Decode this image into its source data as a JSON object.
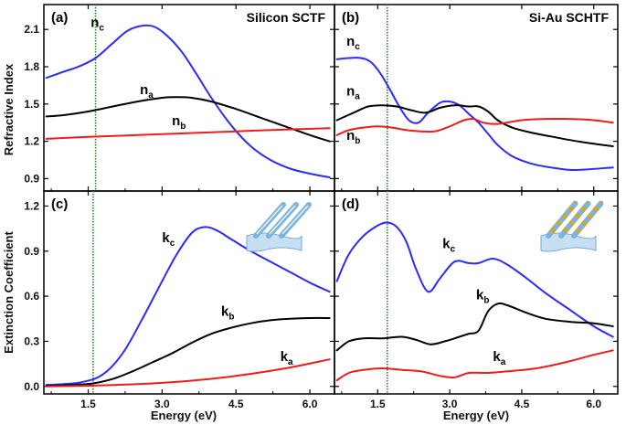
{
  "colors": {
    "n_c": "#2b2bff",
    "n_a": "#000000",
    "n_b": "#ee1c1c",
    "marker": "#2e8b2e"
  },
  "x_axis_title": "Energy (eV)",
  "chart_data": [
    {
      "id": "a",
      "type": "line",
      "tag": "(a)",
      "title": "Silicon SCTF",
      "xlabel": "Energy (eV)",
      "ylabel": "Refractive Index",
      "xlim": [
        0.6,
        6.5
      ],
      "ylim": [
        0.8,
        2.3
      ],
      "xticks": [
        "1.5",
        "3.0",
        "4.5",
        "6.0"
      ],
      "xtick_values": [
        1.5,
        3.0,
        4.5,
        6.0
      ],
      "yticks": [
        "0.9",
        "1.2",
        "1.5",
        "1.8",
        "2.1"
      ],
      "ytick_values": [
        0.9,
        1.2,
        1.5,
        1.8,
        2.1
      ],
      "marker_x": 1.65,
      "series": [
        {
          "name": "n_c",
          "label_main": "n",
          "label_sub": "c",
          "color_key": "n_c",
          "label_x": 1.55,
          "label_y": 2.12,
          "x": [
            0.65,
            1.0,
            1.3,
            1.65,
            2.0,
            2.3,
            2.6,
            2.85,
            3.1,
            3.4,
            3.7,
            4.0,
            4.4,
            4.8,
            5.2,
            5.6,
            6.0,
            6.4
          ],
          "y": [
            1.71,
            1.76,
            1.8,
            1.87,
            1.99,
            2.09,
            2.13,
            2.12,
            2.05,
            1.92,
            1.74,
            1.55,
            1.33,
            1.16,
            1.05,
            0.98,
            0.94,
            0.91
          ]
        },
        {
          "name": "n_a",
          "label_main": "n",
          "label_sub": "a",
          "color_key": "n_a",
          "label_x": 2.55,
          "label_y": 1.58,
          "x": [
            0.65,
            1.0,
            1.5,
            2.0,
            2.5,
            3.0,
            3.3,
            3.6,
            4.0,
            4.5,
            5.0,
            5.5,
            6.0,
            6.4
          ],
          "y": [
            1.4,
            1.41,
            1.44,
            1.48,
            1.52,
            1.55,
            1.555,
            1.55,
            1.52,
            1.46,
            1.39,
            1.32,
            1.25,
            1.2
          ]
        },
        {
          "name": "n_b",
          "label_main": "n",
          "label_sub": "b",
          "color_key": "n_b",
          "label_x": 3.2,
          "label_y": 1.33,
          "x": [
            0.65,
            1.5,
            2.5,
            3.5,
            4.5,
            5.5,
            6.4
          ],
          "y": [
            1.22,
            1.235,
            1.25,
            1.265,
            1.28,
            1.295,
            1.305
          ]
        }
      ]
    },
    {
      "id": "b",
      "type": "line",
      "tag": "(b)",
      "title": "Si-Au SCHTF",
      "xlabel": "Energy (eV)",
      "ylabel": "",
      "xlim": [
        0.6,
        6.5
      ],
      "ylim": [
        0.8,
        2.3
      ],
      "xticks": [
        "1.5",
        "3.0",
        "4.5",
        "6.0"
      ],
      "xtick_values": [
        1.5,
        3.0,
        4.5,
        6.0
      ],
      "yticks": [],
      "ytick_values": [],
      "marker_x": 1.7,
      "series": [
        {
          "name": "n_c",
          "label_main": "n",
          "label_sub": "c",
          "color_key": "n_c",
          "label_x": 0.85,
          "label_y": 1.97,
          "x": [
            0.65,
            0.9,
            1.15,
            1.35,
            1.55,
            1.75,
            1.95,
            2.15,
            2.35,
            2.55,
            2.8,
            3.0,
            3.2,
            3.4,
            3.6,
            3.8,
            4.0,
            4.3,
            4.7,
            5.1,
            5.5,
            5.9,
            6.4
          ],
          "y": [
            1.86,
            1.87,
            1.87,
            1.84,
            1.75,
            1.62,
            1.48,
            1.37,
            1.35,
            1.43,
            1.51,
            1.52,
            1.49,
            1.42,
            1.35,
            1.26,
            1.17,
            1.08,
            1.02,
            0.99,
            0.97,
            0.975,
            0.99
          ]
        },
        {
          "name": "n_a",
          "label_main": "n",
          "label_sub": "a",
          "color_key": "n_a",
          "label_x": 0.85,
          "label_y": 1.57,
          "x": [
            0.65,
            1.0,
            1.3,
            1.6,
            1.9,
            2.2,
            2.5,
            2.8,
            3.1,
            3.4,
            3.6,
            3.8,
            4.0,
            4.3,
            4.7,
            5.1,
            5.5,
            6.0,
            6.4
          ],
          "y": [
            1.37,
            1.43,
            1.48,
            1.49,
            1.48,
            1.45,
            1.43,
            1.47,
            1.49,
            1.48,
            1.48,
            1.44,
            1.37,
            1.31,
            1.27,
            1.24,
            1.21,
            1.18,
            1.16
          ]
        },
        {
          "name": "n_b",
          "label_main": "n",
          "label_sub": "b",
          "color_key": "n_b",
          "label_x": 0.85,
          "label_y": 1.21,
          "x": [
            0.65,
            0.9,
            1.2,
            1.5,
            1.8,
            2.1,
            2.4,
            2.7,
            3.0,
            3.3,
            3.5,
            3.7,
            4.0,
            4.5,
            5.0,
            5.5,
            6.0,
            6.4
          ],
          "y": [
            1.25,
            1.29,
            1.31,
            1.32,
            1.31,
            1.29,
            1.28,
            1.28,
            1.32,
            1.37,
            1.38,
            1.35,
            1.34,
            1.37,
            1.38,
            1.38,
            1.37,
            1.35
          ]
        }
      ]
    },
    {
      "id": "c",
      "type": "line",
      "tag": "(c)",
      "title": "",
      "xlabel": "Energy (eV)",
      "ylabel": "Extinction Coefficient",
      "xlim": [
        0.6,
        6.5
      ],
      "ylim": [
        -0.05,
        1.3
      ],
      "xticks": [
        "1.5",
        "3.0",
        "4.5",
        "6.0"
      ],
      "xtick_values": [
        1.5,
        3.0,
        4.5,
        6.0
      ],
      "yticks": [
        "0.0",
        "0.3",
        "0.6",
        "0.9",
        "1.2"
      ],
      "ytick_values": [
        0.0,
        0.3,
        0.6,
        0.9,
        1.2
      ],
      "marker_x": 1.6,
      "series": [
        {
          "name": "k_c",
          "label_main": "k",
          "label_sub": "c",
          "color_key": "n_c",
          "label_x": 3.0,
          "label_y": 0.96,
          "x": [
            0.65,
            1.0,
            1.4,
            1.8,
            2.2,
            2.6,
            3.0,
            3.3,
            3.6,
            3.85,
            4.1,
            4.4,
            4.8,
            5.2,
            5.6,
            6.0,
            6.4
          ],
          "y": [
            0.01,
            0.015,
            0.03,
            0.08,
            0.22,
            0.45,
            0.7,
            0.88,
            1.02,
            1.06,
            1.04,
            0.98,
            0.9,
            0.83,
            0.76,
            0.69,
            0.63
          ]
        },
        {
          "name": "k_b",
          "label_main": "k",
          "label_sub": "b",
          "color_key": "n_a",
          "label_x": 4.2,
          "label_y": 0.47,
          "x": [
            0.65,
            1.2,
            1.6,
            2.0,
            2.4,
            2.8,
            3.2,
            3.6,
            4.0,
            4.4,
            4.8,
            5.2,
            5.6,
            6.0,
            6.4
          ],
          "y": [
            0.005,
            0.01,
            0.02,
            0.05,
            0.1,
            0.16,
            0.22,
            0.29,
            0.35,
            0.39,
            0.42,
            0.44,
            0.45,
            0.455,
            0.455
          ]
        },
        {
          "name": "k_a",
          "label_main": "k",
          "label_sub": "a",
          "color_key": "n_b",
          "label_x": 5.4,
          "label_y": 0.17,
          "x": [
            0.65,
            1.5,
            2.5,
            3.5,
            4.5,
            5.5,
            6.4
          ],
          "y": [
            0.0,
            0.005,
            0.015,
            0.035,
            0.07,
            0.12,
            0.18
          ]
        }
      ]
    },
    {
      "id": "d",
      "type": "line",
      "tag": "(d)",
      "title": "",
      "xlabel": "Energy (eV)",
      "ylabel": "",
      "xlim": [
        0.6,
        6.5
      ],
      "ylim": [
        -0.05,
        1.3
      ],
      "xticks": [
        "1.5",
        "3.0",
        "4.5",
        "6.0"
      ],
      "xtick_values": [
        1.5,
        3.0,
        4.5,
        6.0
      ],
      "yticks": [],
      "ytick_values": [],
      "marker_x": 1.7,
      "series": [
        {
          "name": "k_c",
          "label_main": "k",
          "label_sub": "c",
          "color_key": "n_c",
          "label_x": 2.85,
          "label_y": 0.92,
          "x": [
            0.65,
            0.9,
            1.2,
            1.5,
            1.7,
            1.9,
            2.1,
            2.3,
            2.55,
            2.8,
            3.1,
            3.4,
            3.6,
            3.9,
            4.2,
            4.6,
            5.0,
            5.5,
            6.0,
            6.4
          ],
          "y": [
            0.7,
            0.88,
            1.0,
            1.07,
            1.09,
            1.06,
            0.96,
            0.78,
            0.63,
            0.72,
            0.83,
            0.82,
            0.82,
            0.85,
            0.81,
            0.72,
            0.62,
            0.51,
            0.4,
            0.33
          ]
        },
        {
          "name": "k_b",
          "label_main": "k",
          "label_sub": "b",
          "color_key": "n_a",
          "label_x": 3.55,
          "label_y": 0.58,
          "x": [
            0.65,
            0.9,
            1.2,
            1.6,
            2.0,
            2.3,
            2.6,
            2.9,
            3.2,
            3.4,
            3.6,
            3.8,
            4.0,
            4.2,
            4.6,
            5.0,
            5.5,
            6.0,
            6.4
          ],
          "y": [
            0.24,
            0.3,
            0.32,
            0.32,
            0.33,
            0.31,
            0.28,
            0.3,
            0.33,
            0.35,
            0.37,
            0.5,
            0.55,
            0.54,
            0.49,
            0.45,
            0.43,
            0.42,
            0.4
          ]
        },
        {
          "name": "k_a",
          "label_main": "k",
          "label_sub": "a",
          "color_key": "n_b",
          "label_x": 3.9,
          "label_y": 0.17,
          "x": [
            0.65,
            0.9,
            1.2,
            1.6,
            2.0,
            2.4,
            2.8,
            3.1,
            3.4,
            3.8,
            4.2,
            4.8,
            5.4,
            6.0,
            6.4
          ],
          "y": [
            0.04,
            0.09,
            0.11,
            0.12,
            0.11,
            0.1,
            0.07,
            0.06,
            0.09,
            0.09,
            0.1,
            0.12,
            0.16,
            0.21,
            0.24
          ]
        }
      ]
    }
  ]
}
